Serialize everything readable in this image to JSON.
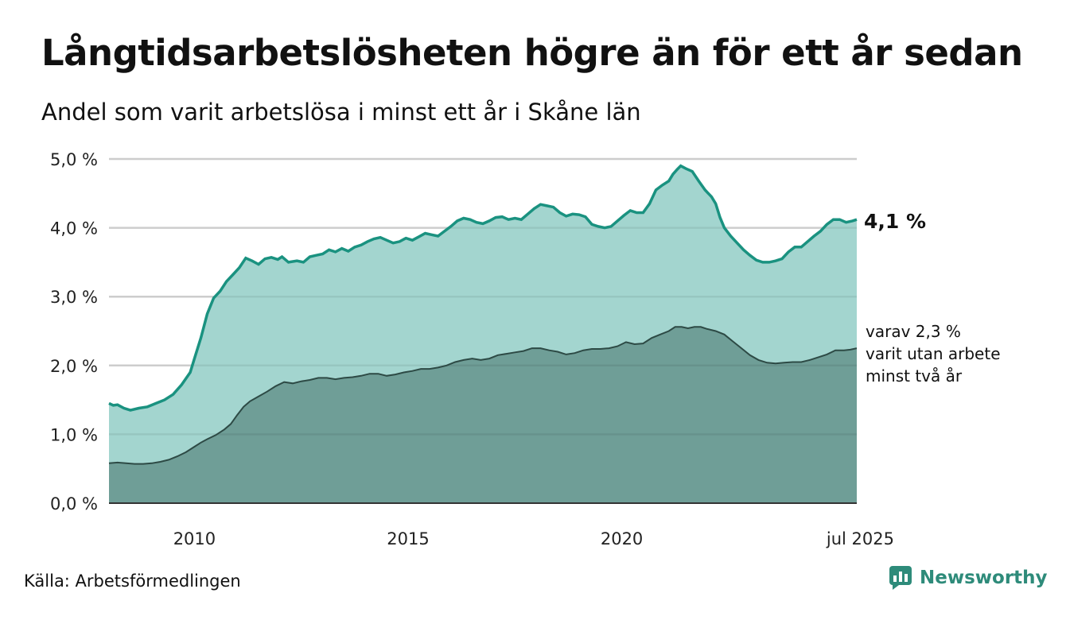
{
  "header": {
    "title": "Långtidsarbetslösheten högre än för ett år sedan",
    "subtitle": "Andel som varit arbetslösa i minst ett år i Skåne län"
  },
  "footer": {
    "source": "Källa: Arbetsförmedlingen",
    "brand": "Newsworthy"
  },
  "colors": {
    "series_main_line": "#1a9280",
    "series_main_fill": "#a3d5cf",
    "series_sub_line": "#2d4a45",
    "series_sub_fill": "#6f9e97",
    "grid": "#dddddd",
    "brand": "#2e8b7a"
  },
  "chart_data": {
    "type": "area",
    "x_unit": "decimal year",
    "xlim": [
      2008.0,
      2025.5
    ],
    "ylim": [
      0,
      5
    ],
    "grid": true,
    "y_ticks": [
      {
        "value": 0,
        "label": "0,0 %"
      },
      {
        "value": 1,
        "label": "1,0 %"
      },
      {
        "value": 2,
        "label": "2,0 %"
      },
      {
        "value": 3,
        "label": "3,0 %"
      },
      {
        "value": 4,
        "label": "4,0 %"
      },
      {
        "value": 5,
        "label": "5,0 %"
      }
    ],
    "x_ticks": [
      {
        "value": 2010,
        "label": "2010"
      },
      {
        "value": 2015,
        "label": "2015"
      },
      {
        "value": 2020,
        "label": "2020"
      },
      {
        "value": 2025.5,
        "label": "jul 2025"
      }
    ],
    "series": [
      {
        "key": "min_ett_ar",
        "points": [
          [
            2008.0,
            1.45
          ],
          [
            2008.1,
            1.42
          ],
          [
            2008.2,
            1.43
          ],
          [
            2008.35,
            1.38
          ],
          [
            2008.5,
            1.35
          ],
          [
            2008.7,
            1.38
          ],
          [
            2008.9,
            1.4
          ],
          [
            2009.1,
            1.45
          ],
          [
            2009.3,
            1.5
          ],
          [
            2009.5,
            1.58
          ],
          [
            2009.7,
            1.72
          ],
          [
            2009.9,
            1.9
          ],
          [
            2010.0,
            2.1
          ],
          [
            2010.15,
            2.4
          ],
          [
            2010.3,
            2.75
          ],
          [
            2010.45,
            2.98
          ],
          [
            2010.6,
            3.08
          ],
          [
            2010.75,
            3.22
          ],
          [
            2010.9,
            3.32
          ],
          [
            2011.05,
            3.42
          ],
          [
            2011.2,
            3.56
          ],
          [
            2011.35,
            3.52
          ],
          [
            2011.5,
            3.47
          ],
          [
            2011.65,
            3.55
          ],
          [
            2011.8,
            3.57
          ],
          [
            2011.95,
            3.54
          ],
          [
            2012.05,
            3.58
          ],
          [
            2012.2,
            3.5
          ],
          [
            2012.4,
            3.52
          ],
          [
            2012.55,
            3.5
          ],
          [
            2012.7,
            3.58
          ],
          [
            2012.85,
            3.6
          ],
          [
            2013.0,
            3.62
          ],
          [
            2013.15,
            3.68
          ],
          [
            2013.3,
            3.65
          ],
          [
            2013.45,
            3.7
          ],
          [
            2013.6,
            3.66
          ],
          [
            2013.75,
            3.72
          ],
          [
            2013.9,
            3.75
          ],
          [
            2014.05,
            3.8
          ],
          [
            2014.2,
            3.84
          ],
          [
            2014.35,
            3.86
          ],
          [
            2014.5,
            3.82
          ],
          [
            2014.65,
            3.78
          ],
          [
            2014.8,
            3.8
          ],
          [
            2014.95,
            3.85
          ],
          [
            2015.1,
            3.82
          ],
          [
            2015.25,
            3.87
          ],
          [
            2015.4,
            3.92
          ],
          [
            2015.55,
            3.9
          ],
          [
            2015.7,
            3.88
          ],
          [
            2015.85,
            3.95
          ],
          [
            2016.0,
            4.02
          ],
          [
            2016.15,
            4.1
          ],
          [
            2016.3,
            4.14
          ],
          [
            2016.45,
            4.12
          ],
          [
            2016.6,
            4.08
          ],
          [
            2016.75,
            4.06
          ],
          [
            2016.9,
            4.1
          ],
          [
            2017.05,
            4.15
          ],
          [
            2017.2,
            4.16
          ],
          [
            2017.35,
            4.12
          ],
          [
            2017.5,
            4.14
          ],
          [
            2017.65,
            4.12
          ],
          [
            2017.8,
            4.2
          ],
          [
            2017.95,
            4.28
          ],
          [
            2018.1,
            4.34
          ],
          [
            2018.25,
            4.32
          ],
          [
            2018.4,
            4.3
          ],
          [
            2018.55,
            4.22
          ],
          [
            2018.7,
            4.17
          ],
          [
            2018.85,
            4.2
          ],
          [
            2019.0,
            4.19
          ],
          [
            2019.15,
            4.16
          ],
          [
            2019.3,
            4.05
          ],
          [
            2019.45,
            4.02
          ],
          [
            2019.6,
            4.0
          ],
          [
            2019.75,
            4.02
          ],
          [
            2019.9,
            4.1
          ],
          [
            2020.05,
            4.18
          ],
          [
            2020.2,
            4.25
          ],
          [
            2020.35,
            4.22
          ],
          [
            2020.5,
            4.22
          ],
          [
            2020.65,
            4.35
          ],
          [
            2020.8,
            4.55
          ],
          [
            2020.95,
            4.62
          ],
          [
            2021.1,
            4.68
          ],
          [
            2021.2,
            4.78
          ],
          [
            2021.3,
            4.85
          ],
          [
            2021.38,
            4.9
          ],
          [
            2021.5,
            4.86
          ],
          [
            2021.65,
            4.82
          ],
          [
            2021.8,
            4.68
          ],
          [
            2021.95,
            4.55
          ],
          [
            2022.1,
            4.45
          ],
          [
            2022.2,
            4.35
          ],
          [
            2022.3,
            4.15
          ],
          [
            2022.4,
            4.0
          ],
          [
            2022.55,
            3.88
          ],
          [
            2022.7,
            3.78
          ],
          [
            2022.85,
            3.68
          ],
          [
            2023.0,
            3.6
          ],
          [
            2023.15,
            3.53
          ],
          [
            2023.3,
            3.5
          ],
          [
            2023.45,
            3.5
          ],
          [
            2023.6,
            3.52
          ],
          [
            2023.75,
            3.55
          ],
          [
            2023.9,
            3.65
          ],
          [
            2024.05,
            3.72
          ],
          [
            2024.2,
            3.72
          ],
          [
            2024.35,
            3.8
          ],
          [
            2024.5,
            3.88
          ],
          [
            2024.65,
            3.95
          ],
          [
            2024.8,
            4.05
          ],
          [
            2024.95,
            4.12
          ],
          [
            2025.1,
            4.12
          ],
          [
            2025.25,
            4.08
          ],
          [
            2025.4,
            4.1
          ],
          [
            2025.5,
            4.12
          ]
        ]
      },
      {
        "key": "min_tva_ar",
        "points": [
          [
            2008.0,
            0.58
          ],
          [
            2008.2,
            0.59
          ],
          [
            2008.4,
            0.58
          ],
          [
            2008.6,
            0.57
          ],
          [
            2008.8,
            0.57
          ],
          [
            2009.0,
            0.58
          ],
          [
            2009.2,
            0.6
          ],
          [
            2009.4,
            0.63
          ],
          [
            2009.6,
            0.68
          ],
          [
            2009.8,
            0.74
          ],
          [
            2010.0,
            0.82
          ],
          [
            2010.15,
            0.88
          ],
          [
            2010.3,
            0.93
          ],
          [
            2010.5,
            0.99
          ],
          [
            2010.7,
            1.07
          ],
          [
            2010.85,
            1.15
          ],
          [
            2011.0,
            1.28
          ],
          [
            2011.15,
            1.4
          ],
          [
            2011.3,
            1.48
          ],
          [
            2011.5,
            1.55
          ],
          [
            2011.7,
            1.62
          ],
          [
            2011.9,
            1.7
          ],
          [
            2012.1,
            1.76
          ],
          [
            2012.3,
            1.74
          ],
          [
            2012.5,
            1.77
          ],
          [
            2012.7,
            1.79
          ],
          [
            2012.9,
            1.82
          ],
          [
            2013.1,
            1.82
          ],
          [
            2013.3,
            1.8
          ],
          [
            2013.5,
            1.82
          ],
          [
            2013.7,
            1.83
          ],
          [
            2013.9,
            1.85
          ],
          [
            2014.1,
            1.88
          ],
          [
            2014.3,
            1.88
          ],
          [
            2014.5,
            1.85
          ],
          [
            2014.7,
            1.87
          ],
          [
            2014.9,
            1.9
          ],
          [
            2015.1,
            1.92
          ],
          [
            2015.3,
            1.95
          ],
          [
            2015.5,
            1.95
          ],
          [
            2015.7,
            1.97
          ],
          [
            2015.9,
            2.0
          ],
          [
            2016.1,
            2.05
          ],
          [
            2016.3,
            2.08
          ],
          [
            2016.5,
            2.1
          ],
          [
            2016.7,
            2.08
          ],
          [
            2016.9,
            2.1
          ],
          [
            2017.1,
            2.15
          ],
          [
            2017.3,
            2.17
          ],
          [
            2017.5,
            2.19
          ],
          [
            2017.7,
            2.21
          ],
          [
            2017.9,
            2.25
          ],
          [
            2018.1,
            2.25
          ],
          [
            2018.3,
            2.22
          ],
          [
            2018.5,
            2.2
          ],
          [
            2018.7,
            2.16
          ],
          [
            2018.9,
            2.18
          ],
          [
            2019.1,
            2.22
          ],
          [
            2019.3,
            2.24
          ],
          [
            2019.5,
            2.24
          ],
          [
            2019.7,
            2.25
          ],
          [
            2019.9,
            2.28
          ],
          [
            2020.1,
            2.34
          ],
          [
            2020.3,
            2.31
          ],
          [
            2020.5,
            2.32
          ],
          [
            2020.7,
            2.4
          ],
          [
            2020.9,
            2.45
          ],
          [
            2021.1,
            2.5
          ],
          [
            2021.25,
            2.56
          ],
          [
            2021.4,
            2.56
          ],
          [
            2021.55,
            2.54
          ],
          [
            2021.7,
            2.56
          ],
          [
            2021.85,
            2.56
          ],
          [
            2022.0,
            2.53
          ],
          [
            2022.2,
            2.5
          ],
          [
            2022.4,
            2.45
          ],
          [
            2022.6,
            2.35
          ],
          [
            2022.8,
            2.25
          ],
          [
            2023.0,
            2.15
          ],
          [
            2023.2,
            2.08
          ],
          [
            2023.4,
            2.04
          ],
          [
            2023.6,
            2.03
          ],
          [
            2023.8,
            2.04
          ],
          [
            2024.0,
            2.05
          ],
          [
            2024.2,
            2.05
          ],
          [
            2024.4,
            2.08
          ],
          [
            2024.6,
            2.12
          ],
          [
            2024.8,
            2.16
          ],
          [
            2025.0,
            2.22
          ],
          [
            2025.2,
            2.22
          ],
          [
            2025.35,
            2.23
          ],
          [
            2025.5,
            2.25
          ]
        ]
      }
    ],
    "annotations": {
      "main_value": "4,1 %",
      "sub_lines": [
        "varav 2,3 %",
        "varit utan arbete",
        "minst två år"
      ]
    }
  }
}
